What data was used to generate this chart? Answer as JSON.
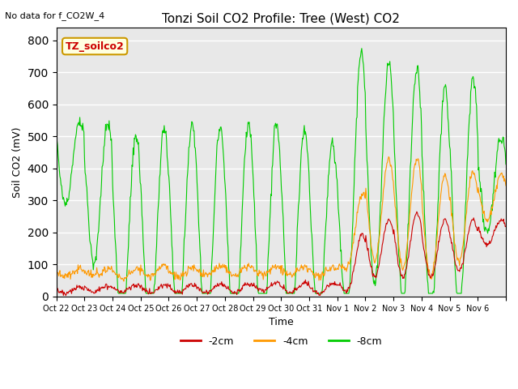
{
  "title": "Tonzi Soil CO2 Profile: Tree (West) CO2",
  "subtitle": "No data for f_CO2W_4",
  "ylabel": "Soil CO2 (mV)",
  "xlabel": "Time",
  "legend_label": "TZ_soilco2",
  "line_labels": [
    "-2cm",
    "-4cm",
    "-8cm"
  ],
  "line_colors": [
    "#cc0000",
    "#ff9900",
    "#00cc00"
  ],
  "ylim": [
    0,
    840
  ],
  "yticks": [
    0,
    100,
    200,
    300,
    400,
    500,
    600,
    700,
    800
  ],
  "xtick_labels": [
    "Oct 22",
    "Oct 23",
    "Oct 24",
    "Oct 25",
    "Oct 26",
    "Oct 27",
    "Oct 28",
    "Oct 29",
    "Oct 30",
    "Oct 31",
    "Nov 1",
    "Nov 2",
    "Nov 3",
    "Nov 4",
    "Nov 5",
    "Nov 6",
    ""
  ],
  "bg_color": "#e8e8e8",
  "fig_bg": "#ffffff",
  "grid_color": "#ffffff"
}
